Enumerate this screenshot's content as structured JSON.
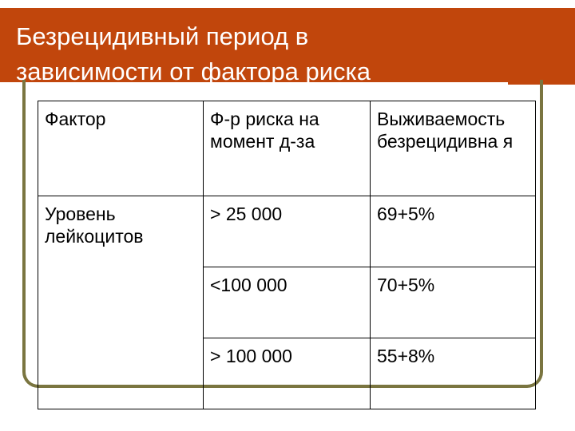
{
  "slide": {
    "title_line1": "Безрецидивный период в",
    "title_line2": "зависимости от фактора риска"
  },
  "table": {
    "headers": [
      "Фактор",
      "Ф-р риска на момент д-за",
      "Выживаемость безрецидивна я"
    ],
    "row_label": "Уровень лейкоцитов",
    "rows": [
      {
        "threshold": "> 25 000",
        "survival": "69+5%"
      },
      {
        "threshold": "<100 000",
        "survival": "70+5%"
      },
      {
        "threshold": "> 100 000",
        "survival": "55+8%"
      }
    ]
  },
  "colors": {
    "title_bar": "#c1460c",
    "frame": "#7a7540"
  }
}
